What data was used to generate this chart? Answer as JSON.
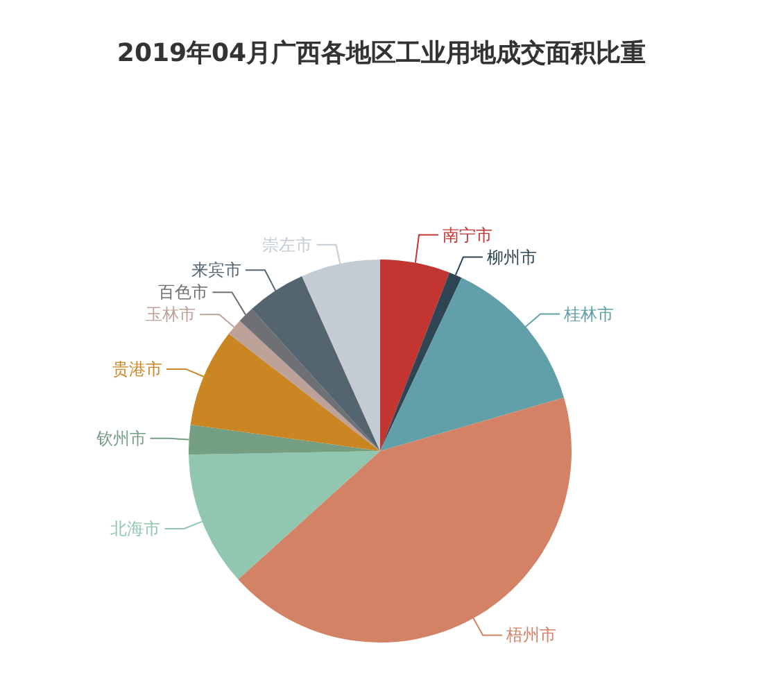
{
  "chart_data": {
    "type": "pie",
    "title": "2019年04月广西各地区工业用地成交面积比重",
    "categories": [
      "南宁市",
      "柳州市",
      "桂林市",
      "梧州市",
      "北海市",
      "钦州市",
      "贵港市",
      "玉林市",
      "百色市",
      "来宾市",
      "崇左市"
    ],
    "values": [
      5.9,
      1.1,
      13.5,
      42.8,
      11.4,
      2.5,
      8.3,
      1.4,
      1.4,
      5,
      6.7
    ],
    "colors": [
      "#c23531",
      "#2f4554",
      "#61a0a8",
      "#d48265",
      "#91c7ae",
      "#749f83",
      "#ca8622",
      "#bda29a",
      "#6e7074",
      "#546570",
      "#c4ccd3"
    ],
    "legend": false
  }
}
